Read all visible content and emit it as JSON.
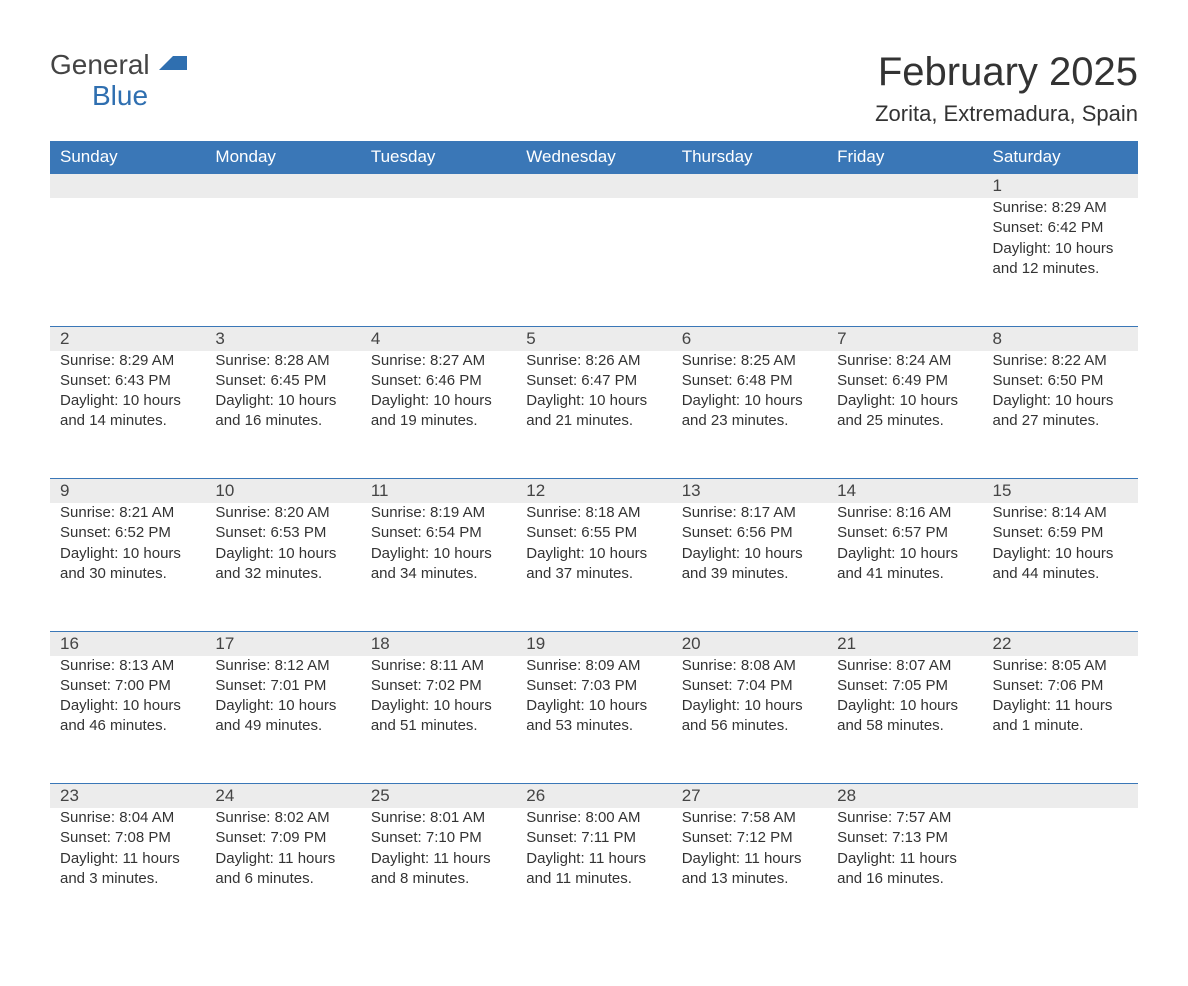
{
  "brand": {
    "general": "General",
    "blue": "Blue"
  },
  "title": "February 2025",
  "location": "Zorita, Extremadura, Spain",
  "colors": {
    "header_bg": "#3a77b7",
    "header_text": "#ffffff",
    "daynum_bg": "#ececec",
    "row_border": "#3a77b7",
    "text": "#333333",
    "brand_blue": "#2f6fb0",
    "page_bg": "#ffffff"
  },
  "weekdays": [
    "Sunday",
    "Monday",
    "Tuesday",
    "Wednesday",
    "Thursday",
    "Friday",
    "Saturday"
  ],
  "weeks": [
    [
      null,
      null,
      null,
      null,
      null,
      null,
      {
        "n": "1",
        "sunrise": "Sunrise: 8:29 AM",
        "sunset": "Sunset: 6:42 PM",
        "day1": "Daylight: 10 hours",
        "day2": "and 12 minutes."
      }
    ],
    [
      {
        "n": "2",
        "sunrise": "Sunrise: 8:29 AM",
        "sunset": "Sunset: 6:43 PM",
        "day1": "Daylight: 10 hours",
        "day2": "and 14 minutes."
      },
      {
        "n": "3",
        "sunrise": "Sunrise: 8:28 AM",
        "sunset": "Sunset: 6:45 PM",
        "day1": "Daylight: 10 hours",
        "day2": "and 16 minutes."
      },
      {
        "n": "4",
        "sunrise": "Sunrise: 8:27 AM",
        "sunset": "Sunset: 6:46 PM",
        "day1": "Daylight: 10 hours",
        "day2": "and 19 minutes."
      },
      {
        "n": "5",
        "sunrise": "Sunrise: 8:26 AM",
        "sunset": "Sunset: 6:47 PM",
        "day1": "Daylight: 10 hours",
        "day2": "and 21 minutes."
      },
      {
        "n": "6",
        "sunrise": "Sunrise: 8:25 AM",
        "sunset": "Sunset: 6:48 PM",
        "day1": "Daylight: 10 hours",
        "day2": "and 23 minutes."
      },
      {
        "n": "7",
        "sunrise": "Sunrise: 8:24 AM",
        "sunset": "Sunset: 6:49 PM",
        "day1": "Daylight: 10 hours",
        "day2": "and 25 minutes."
      },
      {
        "n": "8",
        "sunrise": "Sunrise: 8:22 AM",
        "sunset": "Sunset: 6:50 PM",
        "day1": "Daylight: 10 hours",
        "day2": "and 27 minutes."
      }
    ],
    [
      {
        "n": "9",
        "sunrise": "Sunrise: 8:21 AM",
        "sunset": "Sunset: 6:52 PM",
        "day1": "Daylight: 10 hours",
        "day2": "and 30 minutes."
      },
      {
        "n": "10",
        "sunrise": "Sunrise: 8:20 AM",
        "sunset": "Sunset: 6:53 PM",
        "day1": "Daylight: 10 hours",
        "day2": "and 32 minutes."
      },
      {
        "n": "11",
        "sunrise": "Sunrise: 8:19 AM",
        "sunset": "Sunset: 6:54 PM",
        "day1": "Daylight: 10 hours",
        "day2": "and 34 minutes."
      },
      {
        "n": "12",
        "sunrise": "Sunrise: 8:18 AM",
        "sunset": "Sunset: 6:55 PM",
        "day1": "Daylight: 10 hours",
        "day2": "and 37 minutes."
      },
      {
        "n": "13",
        "sunrise": "Sunrise: 8:17 AM",
        "sunset": "Sunset: 6:56 PM",
        "day1": "Daylight: 10 hours",
        "day2": "and 39 minutes."
      },
      {
        "n": "14",
        "sunrise": "Sunrise: 8:16 AM",
        "sunset": "Sunset: 6:57 PM",
        "day1": "Daylight: 10 hours",
        "day2": "and 41 minutes."
      },
      {
        "n": "15",
        "sunrise": "Sunrise: 8:14 AM",
        "sunset": "Sunset: 6:59 PM",
        "day1": "Daylight: 10 hours",
        "day2": "and 44 minutes."
      }
    ],
    [
      {
        "n": "16",
        "sunrise": "Sunrise: 8:13 AM",
        "sunset": "Sunset: 7:00 PM",
        "day1": "Daylight: 10 hours",
        "day2": "and 46 minutes."
      },
      {
        "n": "17",
        "sunrise": "Sunrise: 8:12 AM",
        "sunset": "Sunset: 7:01 PM",
        "day1": "Daylight: 10 hours",
        "day2": "and 49 minutes."
      },
      {
        "n": "18",
        "sunrise": "Sunrise: 8:11 AM",
        "sunset": "Sunset: 7:02 PM",
        "day1": "Daylight: 10 hours",
        "day2": "and 51 minutes."
      },
      {
        "n": "19",
        "sunrise": "Sunrise: 8:09 AM",
        "sunset": "Sunset: 7:03 PM",
        "day1": "Daylight: 10 hours",
        "day2": "and 53 minutes."
      },
      {
        "n": "20",
        "sunrise": "Sunrise: 8:08 AM",
        "sunset": "Sunset: 7:04 PM",
        "day1": "Daylight: 10 hours",
        "day2": "and 56 minutes."
      },
      {
        "n": "21",
        "sunrise": "Sunrise: 8:07 AM",
        "sunset": "Sunset: 7:05 PM",
        "day1": "Daylight: 10 hours",
        "day2": "and 58 minutes."
      },
      {
        "n": "22",
        "sunrise": "Sunrise: 8:05 AM",
        "sunset": "Sunset: 7:06 PM",
        "day1": "Daylight: 11 hours",
        "day2": "and 1 minute."
      }
    ],
    [
      {
        "n": "23",
        "sunrise": "Sunrise: 8:04 AM",
        "sunset": "Sunset: 7:08 PM",
        "day1": "Daylight: 11 hours",
        "day2": "and 3 minutes."
      },
      {
        "n": "24",
        "sunrise": "Sunrise: 8:02 AM",
        "sunset": "Sunset: 7:09 PM",
        "day1": "Daylight: 11 hours",
        "day2": "and 6 minutes."
      },
      {
        "n": "25",
        "sunrise": "Sunrise: 8:01 AM",
        "sunset": "Sunset: 7:10 PM",
        "day1": "Daylight: 11 hours",
        "day2": "and 8 minutes."
      },
      {
        "n": "26",
        "sunrise": "Sunrise: 8:00 AM",
        "sunset": "Sunset: 7:11 PM",
        "day1": "Daylight: 11 hours",
        "day2": "and 11 minutes."
      },
      {
        "n": "27",
        "sunrise": "Sunrise: 7:58 AM",
        "sunset": "Sunset: 7:12 PM",
        "day1": "Daylight: 11 hours",
        "day2": "and 13 minutes."
      },
      {
        "n": "28",
        "sunrise": "Sunrise: 7:57 AM",
        "sunset": "Sunset: 7:13 PM",
        "day1": "Daylight: 11 hours",
        "day2": "and 16 minutes."
      },
      null
    ]
  ]
}
